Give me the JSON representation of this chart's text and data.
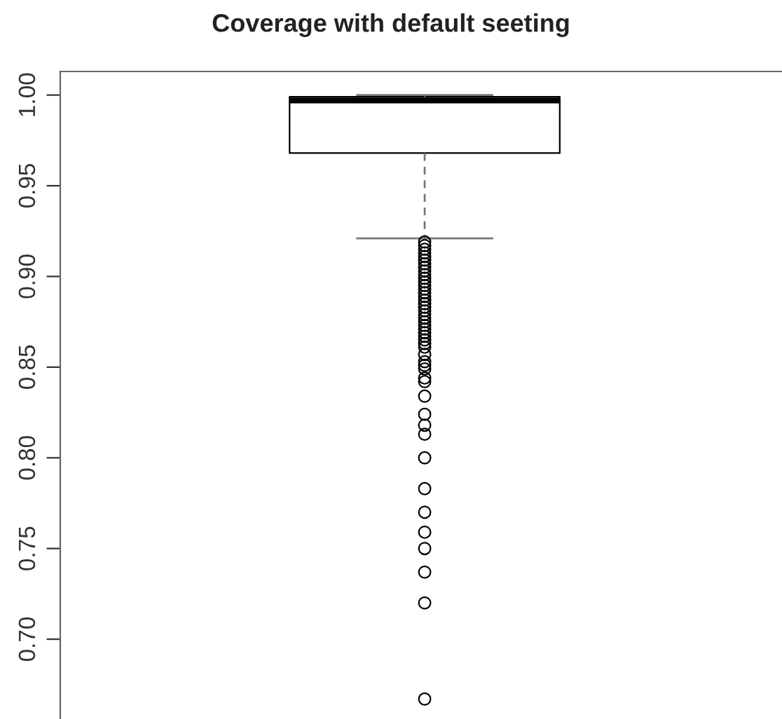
{
  "chart_data": {
    "type": "box",
    "title": "Coverage with default seeting",
    "categories": [
      null
    ],
    "boxes": [
      {
        "low": 0.921,
        "q1": 0.968,
        "median": 0.997,
        "q3": 0.999,
        "high": 1.0,
        "outliers": [
          0.919,
          0.917,
          0.915,
          0.913,
          0.911,
          0.909,
          0.907,
          0.905,
          0.903,
          0.901,
          0.899,
          0.897,
          0.895,
          0.893,
          0.891,
          0.889,
          0.887,
          0.885,
          0.883,
          0.881,
          0.879,
          0.877,
          0.875,
          0.873,
          0.871,
          0.869,
          0.867,
          0.865,
          0.863,
          0.861,
          0.857,
          0.853,
          0.851,
          0.849,
          0.844,
          0.842,
          0.834,
          0.824,
          0.818,
          0.813,
          0.8,
          0.783,
          0.77,
          0.759,
          0.75,
          0.737,
          0.72,
          0.667
        ]
      }
    ],
    "color": "#000000",
    "ylim": [
      0.656,
      1.013
    ],
    "yticks": [
      {
        "value": 0.7,
        "label": "0.70"
      },
      {
        "value": 0.75,
        "label": "0.75"
      },
      {
        "value": 0.8,
        "label": "0.80"
      },
      {
        "value": 0.85,
        "label": "0.85"
      },
      {
        "value": 0.9,
        "label": "0.90"
      },
      {
        "value": 0.95,
        "label": "0.95"
      },
      {
        "value": 1.0,
        "label": "1.00"
      }
    ],
    "tick_labels": "y",
    "grid": false
  }
}
